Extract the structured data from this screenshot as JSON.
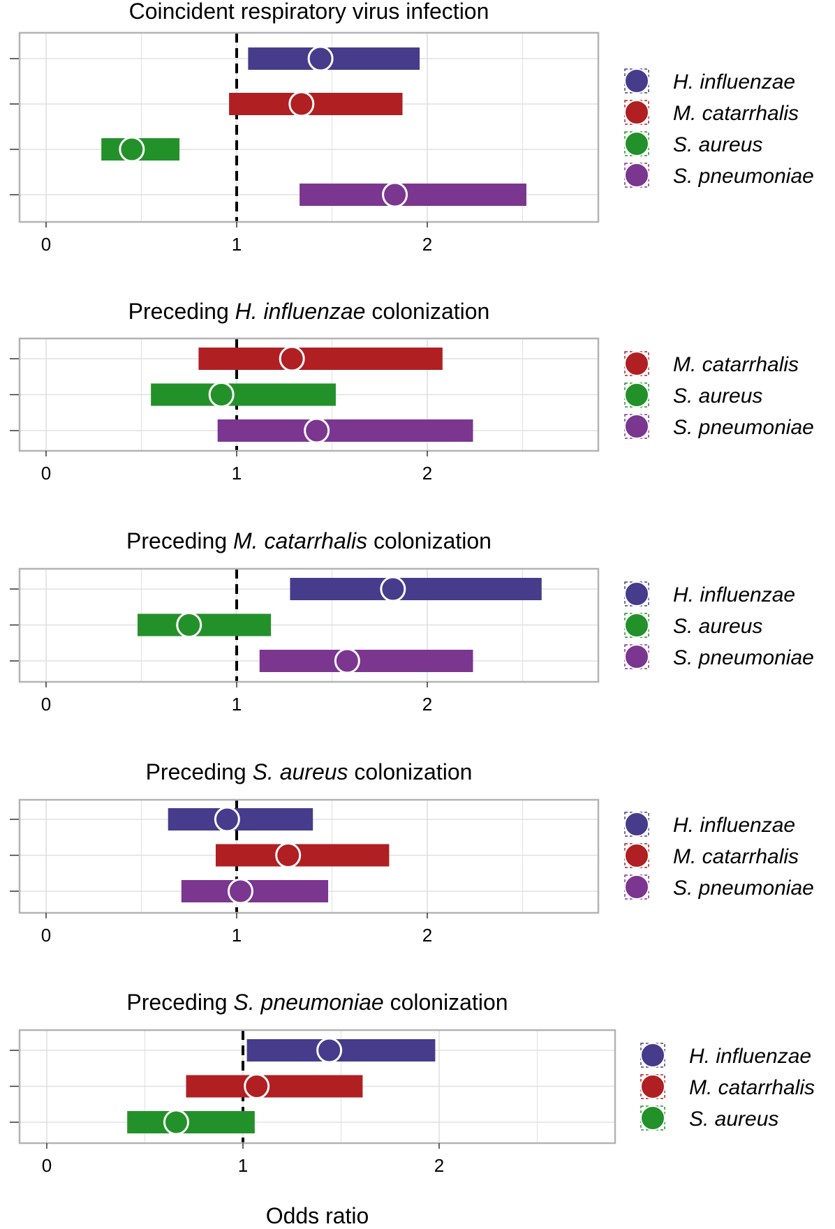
{
  "chart_data": [
    {
      "type": "forest",
      "title": "Coincident respiratory virus infection",
      "title_prefix": "",
      "title_italic": "",
      "title_suffix": "",
      "xlim": [
        0,
        2.85
      ],
      "xticks": [
        0,
        1,
        2
      ],
      "reference_line": 1,
      "rows": [
        {
          "series": "H. influenzae",
          "or": 1.44,
          "lower": 1.06,
          "upper": 1.96
        },
        {
          "series": "M. catarrhalis",
          "or": 1.34,
          "lower": 0.96,
          "upper": 1.87
        },
        {
          "series": "S. aureus",
          "or": 0.45,
          "lower": 0.29,
          "upper": 0.7
        },
        {
          "series": "S. pneumoniae",
          "or": 1.83,
          "lower": 1.33,
          "upper": 2.52
        }
      ],
      "legend": [
        "H. influenzae",
        "M. catarrhalis",
        "S. aureus",
        "S. pneumoniae"
      ]
    },
    {
      "type": "forest",
      "title": "",
      "title_prefix": "Preceding ",
      "title_italic": "H. influenzae",
      "title_suffix": " colonization",
      "xlim": [
        0,
        2.85
      ],
      "xticks": [
        0,
        1,
        2
      ],
      "reference_line": 1,
      "rows": [
        {
          "series": "M. catarrhalis",
          "or": 1.29,
          "lower": 0.8,
          "upper": 2.08
        },
        {
          "series": "S. aureus",
          "or": 0.92,
          "lower": 0.55,
          "upper": 1.52
        },
        {
          "series": "S. pneumoniae",
          "or": 1.42,
          "lower": 0.9,
          "upper": 2.24
        }
      ],
      "legend": [
        "M. catarrhalis",
        "S. aureus",
        "S. pneumoniae"
      ]
    },
    {
      "type": "forest",
      "title": "",
      "title_prefix": "Preceding ",
      "title_italic": "M. catarrhalis",
      "title_suffix": " colonization",
      "xlim": [
        0,
        2.85
      ],
      "xticks": [
        0,
        1,
        2
      ],
      "reference_line": 1,
      "rows": [
        {
          "series": "H. influenzae",
          "or": 1.82,
          "lower": 1.28,
          "upper": 2.6
        },
        {
          "series": "S. aureus",
          "or": 0.75,
          "lower": 0.48,
          "upper": 1.18
        },
        {
          "series": "S. pneumoniae",
          "or": 1.58,
          "lower": 1.12,
          "upper": 2.24
        }
      ],
      "legend": [
        "H. influenzae",
        "S. aureus",
        "S. pneumoniae"
      ]
    },
    {
      "type": "forest",
      "title": "",
      "title_prefix": "Preceding ",
      "title_italic": "S. aureus",
      "title_suffix": " colonization",
      "xlim": [
        0,
        2.85
      ],
      "xticks": [
        0,
        1,
        2
      ],
      "reference_line": 1,
      "rows": [
        {
          "series": "H. influenzae",
          "or": 0.95,
          "lower": 0.64,
          "upper": 1.4
        },
        {
          "series": "M. catarrhalis",
          "or": 1.27,
          "lower": 0.89,
          "upper": 1.8
        },
        {
          "series": "S. pneumoniae",
          "or": 1.02,
          "lower": 0.71,
          "upper": 1.48
        }
      ],
      "legend": [
        "H. influenzae",
        "M. catarrhalis",
        "S. pneumoniae"
      ]
    },
    {
      "type": "forest",
      "title": "",
      "title_prefix": "Preceding ",
      "title_italic": "S. pneumoniae",
      "title_suffix": " colonization",
      "xlim": [
        0,
        2.85
      ],
      "xticks": [
        0,
        1,
        2
      ],
      "reference_line": 1,
      "xlabel": "Odds ratio",
      "rows": [
        {
          "series": "H. influenzae",
          "or": 1.44,
          "lower": 1.02,
          "upper": 1.98
        },
        {
          "series": "M. catarrhalis",
          "or": 1.07,
          "lower": 0.71,
          "upper": 1.61
        },
        {
          "series": "S. aureus",
          "or": 0.66,
          "lower": 0.41,
          "upper": 1.06
        }
      ],
      "legend": [
        "H. influenzae",
        "M. catarrhalis",
        "S. aureus"
      ]
    }
  ],
  "colors": {
    "H. influenzae": "#473b8c",
    "M. catarrhalis": "#b01f22",
    "S. aureus": "#23912a",
    "S. pneumoniae": "#7b3690",
    "panel_border": "#b3b3b3",
    "grid": "#e0e0e0",
    "reference_line": "#000000",
    "point_outline": "#ffffff"
  }
}
